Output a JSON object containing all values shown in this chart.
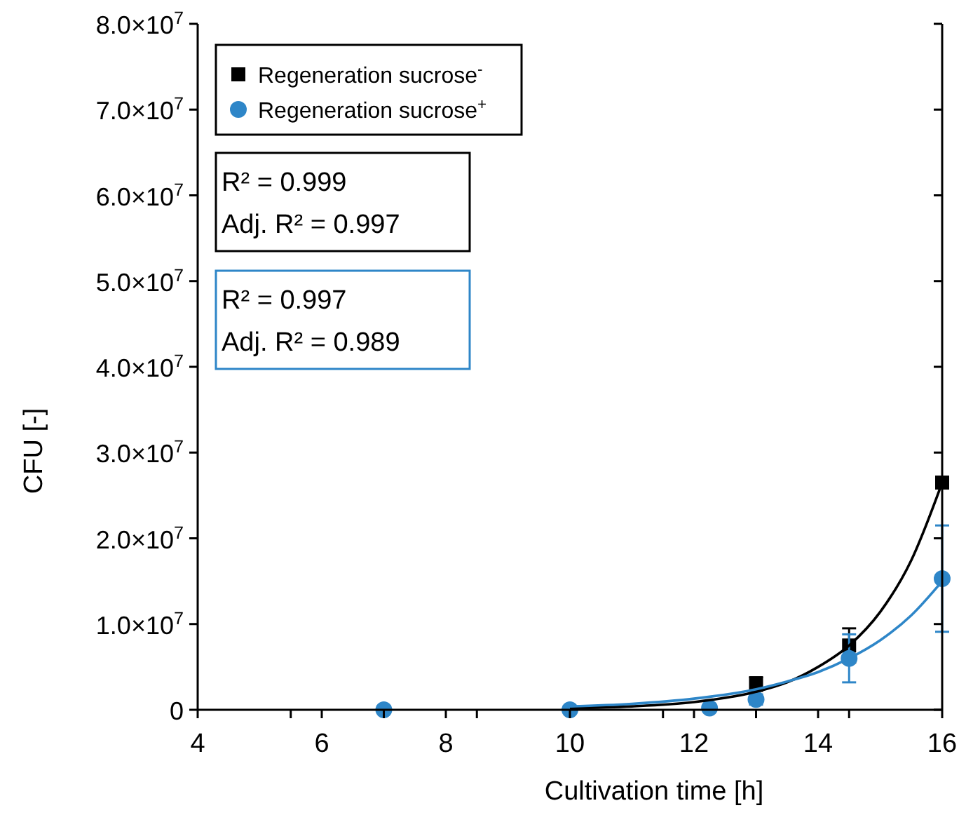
{
  "chart_data": {
    "type": "scatter",
    "xlabel": "Cultivation time [h]",
    "ylabel": "CFU [-]",
    "xlim": [
      4,
      16
    ],
    "ylim": [
      0,
      80000000
    ],
    "xticks": [
      4,
      6,
      8,
      10,
      12,
      14,
      16,
      {
        "value": 5.5,
        "label": null
      },
      {
        "value": 7,
        "label": null
      },
      {
        "value": 8.5,
        "label": null
      },
      {
        "value": 11.5,
        "label": null
      },
      {
        "value": 13,
        "label": null
      },
      {
        "value": 14.5,
        "label": null
      }
    ],
    "yticks": [
      {
        "value": 0,
        "label": "0"
      },
      {
        "value": 10000000,
        "label": "1.0×10$^{7}$"
      },
      {
        "value": 20000000,
        "label": "2.0×10$^{7}$"
      },
      {
        "value": 30000000,
        "label": "3.0×10$^{7}$"
      },
      {
        "value": 40000000,
        "label": "4.0×10$^{7}$"
      },
      {
        "value": 50000000,
        "label": "5.0×10$^{7}$"
      },
      {
        "value": 60000000,
        "label": "6.0×10$^{7}$"
      },
      {
        "value": 70000000,
        "label": "7.0×10$^{7}$"
      },
      {
        "value": 80000000,
        "label": "8.0×10$^{7}$"
      }
    ],
    "legend": "top left",
    "grid": false,
    "series": [
      {
        "name": "Regeneration sucrose$^{-}$",
        "color": "#000000",
        "marker": "square",
        "x": [
          13,
          14.5,
          16
        ],
        "values": [
          3000000,
          7500000,
          26500000
        ],
        "errors": [
          800000,
          2000000,
          null
        ]
      },
      {
        "name": "Regeneration sucrose$^{+}$",
        "color": "#2e86c8",
        "marker": "circle",
        "x": [
          7,
          10,
          12.25,
          13,
          14.5,
          16
        ],
        "values": [
          0,
          0,
          200000,
          1200000,
          6000000,
          15300000
        ],
        "errors": [
          null,
          null,
          null,
          600000,
          2800000,
          6200000
        ]
      },
      {
        "type": "line",
        "color": "#000000",
        "marker": "none",
        "x": [
          10,
          11,
          12,
          13,
          13.5,
          14,
          14.5,
          15,
          15.5,
          16
        ],
        "values": [
          200000,
          400000,
          900000,
          2100000,
          3200000,
          5000000,
          7500000,
          11400000,
          17400000,
          26500000
        ]
      },
      {
        "type": "line",
        "color": "#2e86c8",
        "marker": "none",
        "x": [
          10,
          11,
          12,
          13,
          13.5,
          14,
          14.5,
          15,
          15.5,
          16
        ],
        "values": [
          400000,
          700000,
          1300000,
          2400000,
          3300000,
          4400000,
          6000000,
          8100000,
          11000000,
          15000000
        ]
      }
    ],
    "annotations": [
      "R² = 0.999\nAdj. R² = 0.997",
      "R² = 0.997\nAdj. R² = 0.989"
    ]
  }
}
